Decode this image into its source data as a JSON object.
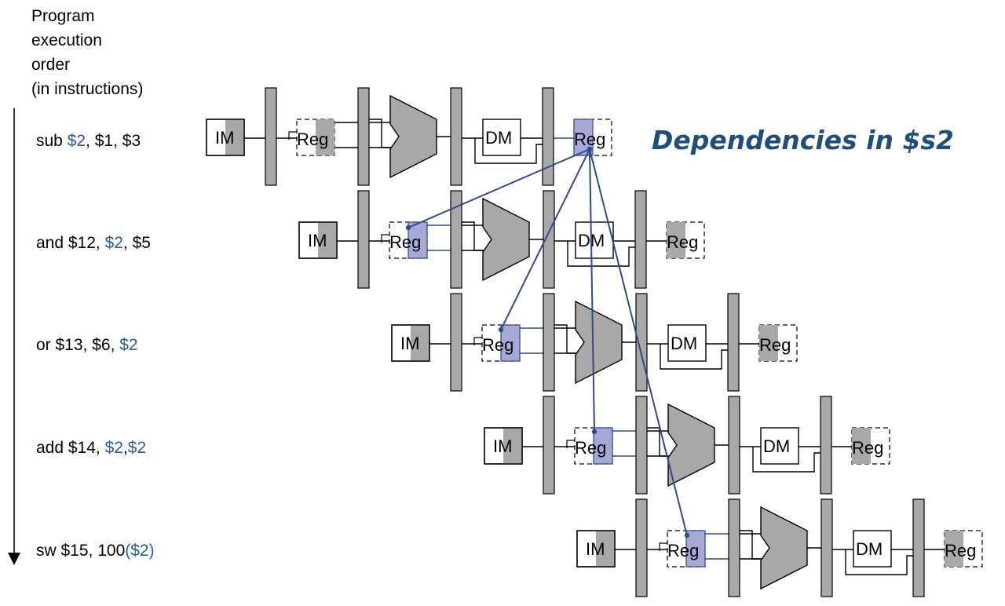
{
  "axis": {
    "label_lines": [
      "Program",
      "execution",
      "order",
      "(in instructions)"
    ]
  },
  "title": "Dependencies in $s2",
  "stage_labels": {
    "im": "IM",
    "reg": "Reg",
    "dm": "DM"
  },
  "instructions": [
    {
      "parts": [
        {
          "t": "sub ",
          "hl": false
        },
        {
          "t": "$2",
          "hl": true
        },
        {
          "t": ", $1, $3",
          "hl": false
        }
      ]
    },
    {
      "parts": [
        {
          "t": "and $12, ",
          "hl": false
        },
        {
          "t": "$2",
          "hl": true
        },
        {
          "t": ", $5",
          "hl": false
        }
      ]
    },
    {
      "parts": [
        {
          "t": "or $13, $6, ",
          "hl": false
        },
        {
          "t": "$2",
          "hl": true
        }
      ]
    },
    {
      "parts": [
        {
          "t": "add $14, ",
          "hl": false
        },
        {
          "t": "$2",
          "hl": true
        },
        {
          "t": ",",
          "hl": false
        },
        {
          "t": "$2",
          "hl": true
        }
      ]
    },
    {
      "parts": [
        {
          "t": "sw $15, 100",
          "hl": false
        },
        {
          "t": "($2)",
          "hl": true
        }
      ]
    }
  ],
  "colors": {
    "gray": "#a8a8a8",
    "highlight": "#a6a8d6",
    "dep_line": "#2d4a8a",
    "title": "#1f4e79"
  }
}
